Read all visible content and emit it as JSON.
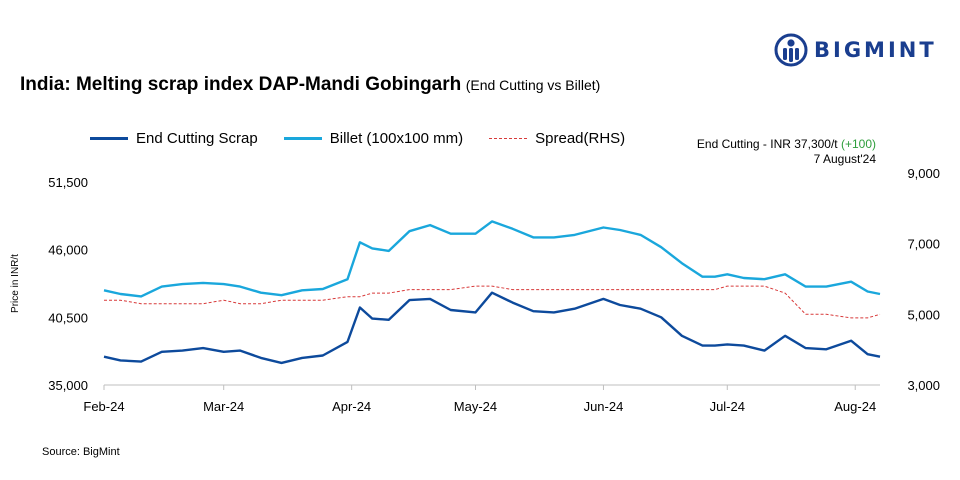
{
  "brand": {
    "name": "BIGMINT"
  },
  "title": "India: Melting scrap index DAP-Mandi Gobingarh",
  "subtitle": "(End Cutting vs Billet)",
  "annotation": {
    "prefix": "End Cutting - INR 37,300/t ",
    "change": "(+100)",
    "date": "7 August'24"
  },
  "source": "Source: BigMint",
  "colors": {
    "end_cutting": "#0d4a9c",
    "billet": "#1aa7dc",
    "spread": "#d83a3a",
    "brand": "#1a3e8f",
    "change": "#2e9e3c"
  },
  "chart_data": {
    "type": "line",
    "title": "India: Melting scrap index DAP-Mandi Gobingarh",
    "ylabel": "Price in INR/t",
    "ylim": [
      35000,
      51500
    ],
    "y2lim": [
      3000,
      9000
    ],
    "yticks": [
      "35,000",
      "40,500",
      "46,000",
      "51,500"
    ],
    "y2ticks": [
      "3,000",
      "5,000",
      "7,000",
      "9,000"
    ],
    "xticks": [
      "Feb-24",
      "Mar-24",
      "Apr-24",
      "May-24",
      "Jun-24",
      "Jul-24",
      "Aug-24"
    ],
    "legend_position": "top-left",
    "grid": false,
    "x": [
      "2024-02-01",
      "2024-02-05",
      "2024-02-10",
      "2024-02-15",
      "2024-02-20",
      "2024-02-25",
      "2024-03-01",
      "2024-03-05",
      "2024-03-10",
      "2024-03-15",
      "2024-03-20",
      "2024-03-25",
      "2024-03-31",
      "2024-04-03",
      "2024-04-06",
      "2024-04-10",
      "2024-04-15",
      "2024-04-20",
      "2024-04-25",
      "2024-05-01",
      "2024-05-05",
      "2024-05-10",
      "2024-05-15",
      "2024-05-20",
      "2024-05-25",
      "2024-06-01",
      "2024-06-05",
      "2024-06-10",
      "2024-06-15",
      "2024-06-20",
      "2024-06-25",
      "2024-06-28",
      "2024-07-01",
      "2024-07-05",
      "2024-07-10",
      "2024-07-15",
      "2024-07-20",
      "2024-07-25",
      "2024-07-31",
      "2024-08-04",
      "2024-08-07"
    ],
    "series": [
      {
        "name": "End Cutting Scrap",
        "axis": "left",
        "values": [
          37300,
          37000,
          36900,
          37700,
          37800,
          38000,
          37700,
          37800,
          37200,
          36800,
          37200,
          37400,
          38500,
          41300,
          40400,
          40300,
          41900,
          42000,
          41100,
          40900,
          42500,
          41700,
          41000,
          40900,
          41200,
          42000,
          41500,
          41200,
          40500,
          39000,
          38200,
          38200,
          38300,
          38200,
          37800,
          39000,
          38000,
          37900,
          38600,
          37500,
          37300
        ]
      },
      {
        "name": "Billet (100x100 mm)",
        "axis": "left",
        "values": [
          42700,
          42400,
          42200,
          43000,
          43200,
          43300,
          43200,
          43000,
          42500,
          42300,
          42700,
          42800,
          43600,
          46600,
          46100,
          45900,
          47500,
          48000,
          47300,
          47300,
          48300,
          47700,
          47000,
          47000,
          47200,
          47800,
          47600,
          47200,
          46200,
          44900,
          43800,
          43800,
          44000,
          43700,
          43600,
          44000,
          43000,
          43000,
          43400,
          42600,
          42400
        ]
      },
      {
        "name": "Spread(RHS)",
        "axis": "right",
        "values": [
          5400,
          5400,
          5300,
          5300,
          5300,
          5300,
          5400,
          5300,
          5300,
          5400,
          5400,
          5400,
          5500,
          5500,
          5600,
          5600,
          5700,
          5700,
          5700,
          5800,
          5800,
          5700,
          5700,
          5700,
          5700,
          5700,
          5700,
          5700,
          5700,
          5700,
          5700,
          5700,
          5800,
          5800,
          5800,
          5600,
          5000,
          5000,
          4900,
          4900,
          5000
        ]
      }
    ]
  }
}
